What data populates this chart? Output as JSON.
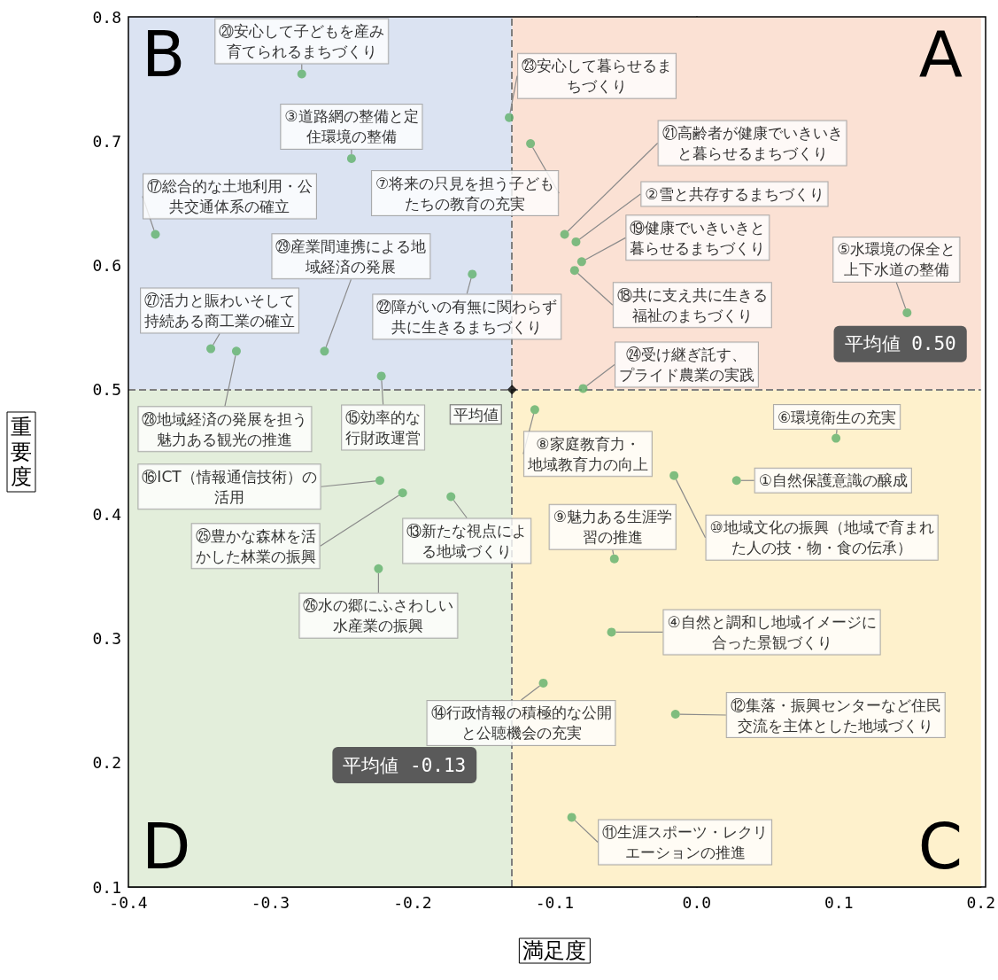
{
  "chart_data": {
    "type": "scatter",
    "xlabel": "満足度",
    "ylabel": "重要度",
    "xlim": [
      -0.4,
      0.2
    ],
    "xticks": [
      -0.4,
      -0.3,
      -0.2,
      -0.1,
      {
        "value": 0,
        "label": "0.0"
      },
      0.1,
      0.2
    ],
    "ylim": [
      0.1,
      0.8
    ],
    "yticks": [
      0.1,
      0.2,
      0.3,
      0.4,
      0.5,
      0.6,
      0.7,
      0.8
    ],
    "grid": false,
    "legend": false,
    "marker": "circle",
    "series": [
      {
        "color": "#5fb06a",
        "x": [
          -0.278,
          -0.132,
          -0.117,
          -0.243,
          -0.381,
          -0.093,
          -0.085,
          -0.081,
          -0.086,
          0.148,
          -0.158,
          -0.262,
          -0.342,
          -0.324,
          -0.222,
          -0.08,
          0.098,
          -0.114,
          -0.223,
          -0.207,
          -0.173,
          -0.016,
          0.028,
          -0.058,
          -0.224,
          -0.06,
          -0.108,
          -0.015,
          -0.088
        ],
        "values": [
          0.754,
          0.719,
          0.698,
          0.686,
          0.625,
          0.625,
          0.619,
          0.603,
          0.596,
          0.562,
          0.593,
          0.531,
          0.533,
          0.531,
          0.511,
          0.501,
          0.461,
          0.484,
          0.427,
          0.417,
          0.414,
          0.431,
          0.427,
          0.364,
          0.356,
          0.305,
          0.264,
          0.239,
          0.156
        ]
      },
      {
        "name": "平均値",
        "color": "#000000",
        "marker": "diamond",
        "x": [
          -0.13
        ],
        "values": [
          0.5
        ]
      }
    ],
    "ref_lines": [
      {
        "axis": "y",
        "value": 0.5,
        "label": "平均値 0.50",
        "color": "#7f7f7f",
        "line_style": "dashed"
      },
      {
        "axis": "x",
        "value": -0.13,
        "label": "平均値 -0.13",
        "color": "#7f7f7f",
        "line_style": "dashed"
      }
    ],
    "annotations": [
      "A",
      "B",
      "C",
      "D",
      {
        "text": "⑳安心して子どもを産み育てられるまちづくり",
        "x": -0.278,
        "y": 0.754
      },
      {
        "text": "㉓安心して暮らせるまちづくり",
        "x": -0.132,
        "y": 0.719
      },
      {
        "text": "⑦将来の只見を担う子どもたちの教育の充実",
        "x": -0.117,
        "y": 0.698
      },
      {
        "text": "③道路網の整備と定住環境の整備",
        "x": -0.243,
        "y": 0.686
      },
      {
        "text": "⑰総合的な土地利用・公共交通体系の確立",
        "x": -0.381,
        "y": 0.625
      },
      {
        "text": "㉑高齢者が健康でいきいきと暮らせるまちづくり",
        "x": -0.093,
        "y": 0.625
      },
      {
        "text": "②雪と共存するまちづくり",
        "x": -0.085,
        "y": 0.619
      },
      {
        "text": "⑲健康でいきいきと暮らせるまちづくり",
        "x": -0.081,
        "y": 0.603
      },
      {
        "text": "⑱共に支え共に生きる福祉のまちづくり",
        "x": -0.086,
        "y": 0.596
      },
      {
        "text": "⑤水環境の保全と上下水道の整備",
        "x": 0.148,
        "y": 0.562
      },
      {
        "text": "㉒障がいの有無に関わらず共に生きるまちづくり",
        "x": -0.158,
        "y": 0.593
      },
      {
        "text": "㉙産業間連携による地域経済の発展",
        "x": -0.262,
        "y": 0.531
      },
      {
        "text": "㉗活力と賑わいそして持続ある商工業の確立",
        "x": -0.342,
        "y": 0.533
      },
      {
        "text": "㉘地域経済の発展を担う魅力ある観光の推進",
        "x": -0.324,
        "y": 0.531
      },
      {
        "text": "⑮効率的な行財政運営",
        "x": -0.222,
        "y": 0.511
      },
      {
        "text": "㉔受け継ぎ託す、プライド農業の実践",
        "x": -0.08,
        "y": 0.501
      },
      {
        "text": "⑥環境衛生の充実",
        "x": 0.098,
        "y": 0.461
      },
      {
        "text": "⑧家庭教育力・地域教育力の向上",
        "x": -0.114,
        "y": 0.484
      },
      {
        "text": "⑯ICT（情報通信技術）の活用",
        "x": -0.223,
        "y": 0.427
      },
      {
        "text": "㉕豊かな森林を活かした林業の振興",
        "x": -0.207,
        "y": 0.417
      },
      {
        "text": "⑬新たな視点による地域づくり",
        "x": -0.173,
        "y": 0.414
      },
      {
        "text": "⑩地域文化の振興（地域で育まれた人の技・物・食の伝承）",
        "x": -0.016,
        "y": 0.431
      },
      {
        "text": "①自然保護意識の醸成",
        "x": 0.028,
        "y": 0.427
      },
      {
        "text": "⑨魅力ある生涯学習の推進",
        "x": -0.058,
        "y": 0.364
      },
      {
        "text": "㉖水の郷にふさわしい水産業の振興",
        "x": -0.224,
        "y": 0.356
      },
      {
        "text": "④自然と調和し地域イメージに合った景観づくり",
        "x": -0.06,
        "y": 0.305
      },
      {
        "text": "⑭行政情報の積極的な公開と公聴機会の充実",
        "x": -0.108,
        "y": 0.264
      },
      {
        "text": "⑫集落・振興センターなど住民交流を主体とした地域づくり",
        "x": -0.015,
        "y": 0.239
      },
      {
        "text": "⑪生涯スポーツ・レクリエーションの推進",
        "x": -0.088,
        "y": 0.156
      }
    ]
  }
}
